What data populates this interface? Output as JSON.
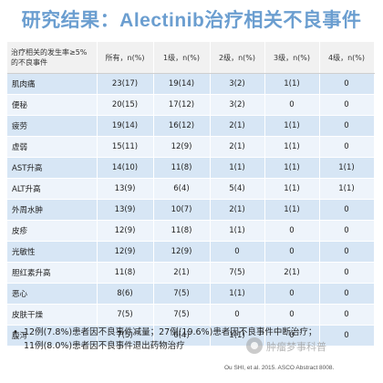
{
  "title": {
    "prefix": "研究结果：",
    "drug": "Alectinib",
    "suffix": "治疗相关不良事件"
  },
  "table": {
    "headers": [
      "治疗相关的发生率≥5%的不良事件",
      "所有，n(%)",
      "1级，n(%)",
      "2级，n(%)",
      "3级，n(%)",
      "4级，n(%)"
    ],
    "rows": [
      [
        "肌肉痛",
        "23(17)",
        "19(14)",
        "3(2)",
        "1(1)",
        "0"
      ],
      [
        "便秘",
        "20(15)",
        "17(12)",
        "3(2)",
        "0",
        "0"
      ],
      [
        "疲劳",
        "19(14)",
        "16(12)",
        "2(1)",
        "1(1)",
        "0"
      ],
      [
        "虚弱",
        "15(11)",
        "12(9)",
        "2(1)",
        "1(1)",
        "0"
      ],
      [
        "AST升高",
        "14(10)",
        "11(8)",
        "1(1)",
        "1(1)",
        "1(1)"
      ],
      [
        "ALT升高",
        "13(9)",
        "6(4)",
        "5(4)",
        "1(1)",
        "1(1)"
      ],
      [
        "外周水肿",
        "13(9)",
        "10(7)",
        "2(1)",
        "1(1)",
        "0"
      ],
      [
        "皮疹",
        "12(9)",
        "11(8)",
        "1(1)",
        "0",
        "0"
      ],
      [
        "光敏性",
        "12(9)",
        "12(9)",
        "0",
        "0",
        "0"
      ],
      [
        "胆红素升高",
        "11(8)",
        "2(1)",
        "7(5)",
        "2(1)",
        "0"
      ],
      [
        "恶心",
        "8(6)",
        "7(5)",
        "1(1)",
        "0",
        "0"
      ],
      [
        "皮肤干燥",
        "7(5)",
        "7(5)",
        "0",
        "0",
        "0"
      ],
      [
        "腹泻",
        "7(5)",
        "6(4)",
        "1(1)",
        "0",
        "0"
      ]
    ]
  },
  "notes": {
    "bullet": "•",
    "line1": "12例(7.8%)患者因不良事件减量；27例(19.6%)患者因不良事件中断治疗；",
    "line2": "11例(8.0%)患者因不良事件退出药物治疗"
  },
  "citation": "Ou SHI, et al. 2015. ASCO Abstract 8008.",
  "watermark": {
    "text": "肿瘤梦事科普",
    "icon": "wechat-logo-icon"
  },
  "colors": {
    "title": "#6b9ed0",
    "row_odd": "#d7e6f5",
    "row_even": "#eef4fb",
    "header_bg": "#f1f1f1"
  }
}
